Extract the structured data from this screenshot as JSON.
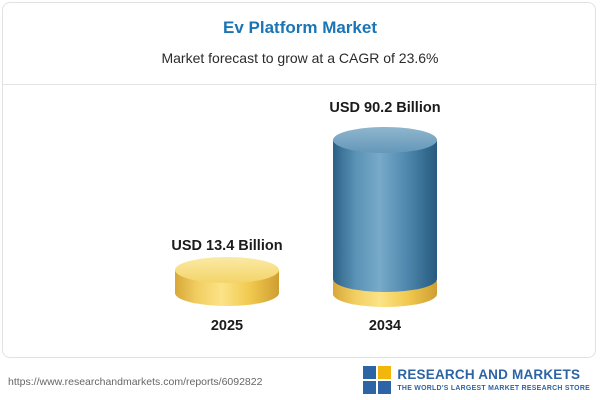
{
  "header": {
    "title": "Ev Platform Market",
    "subtitle": "Market forecast to grow at a CAGR of 23.6%"
  },
  "chart_data": {
    "type": "bar",
    "title": "Ev Platform Market",
    "subtitle": "Market forecast to grow at a CAGR of 23.6%",
    "categories": [
      "2025",
      "2034"
    ],
    "values": [
      13.4,
      90.2
    ],
    "unit": "USD Billion",
    "data_labels": [
      "USD 13.4 Billion",
      "USD 90.2 Billion"
    ],
    "cagr_percent": 23.6,
    "legend": "none",
    "grid": "off",
    "colors": {
      "bar_2025": "#f1c94f",
      "bar_2034": "#4d86ac",
      "bar_2034_base": "#f1c94f",
      "title": "#1b75b5"
    }
  },
  "footer": {
    "url": "https://www.researchandmarkets.com/reports/6092822",
    "logo": {
      "name": "RESEARCH AND MARKETS",
      "tagline": "THE WORLD'S LARGEST MARKET RESEARCH STORE"
    }
  }
}
